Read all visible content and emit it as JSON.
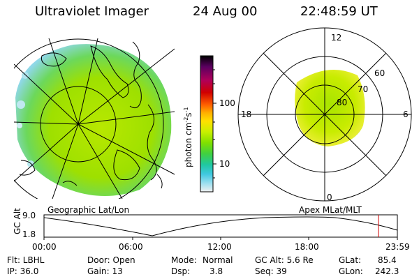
{
  "header": {
    "instrument": "Ultraviolet Imager",
    "date": "24 Aug 00",
    "time": "22:48:59 UT"
  },
  "colorbar": {
    "unit_label": "photon cm",
    "unit_exp1": "-2",
    "unit_mid": "s",
    "unit_exp2": "-1",
    "ticks": [
      "100",
      "10"
    ],
    "colors": [
      "#000000",
      "#5a0060",
      "#b0005a",
      "#d00000",
      "#ff6000",
      "#ffb000",
      "#ffe000",
      "#c8f000",
      "#80e000",
      "#40d040",
      "#20c8a0",
      "#40c8e0",
      "#a0e0f0",
      "#f0f0f0"
    ]
  },
  "polar_plot": {
    "mlt_labels": [
      "12",
      "18",
      "6",
      "0"
    ],
    "lat_labels": [
      "60",
      "70",
      "80"
    ]
  },
  "orbit_panel": {
    "y_axis_label": "GC Alt",
    "y_ticks": [
      "9.0",
      "1.8"
    ],
    "left_label": "Geographic Lat/Lon",
    "right_label": "Apex MLat/MLT",
    "x_ticks": [
      "00:00",
      "06:00",
      "12:00",
      "18:00",
      "23:59"
    ]
  },
  "status": {
    "flt": "Flt: LBHL",
    "ip": "IP: 36.0",
    "door": "Door: Open",
    "gain": "Gain: 13",
    "mode_label": "Mode:",
    "mode_value": "Normal",
    "dsp_label": "Dsp:",
    "dsp_value": "3.8",
    "gc_alt": "GC Alt: 5.6 Re",
    "seq": "Seq: 39",
    "glat_label": "GLat:",
    "glat_value": "85.4",
    "glon_label": "GLon:",
    "glon_value": "242.3"
  }
}
